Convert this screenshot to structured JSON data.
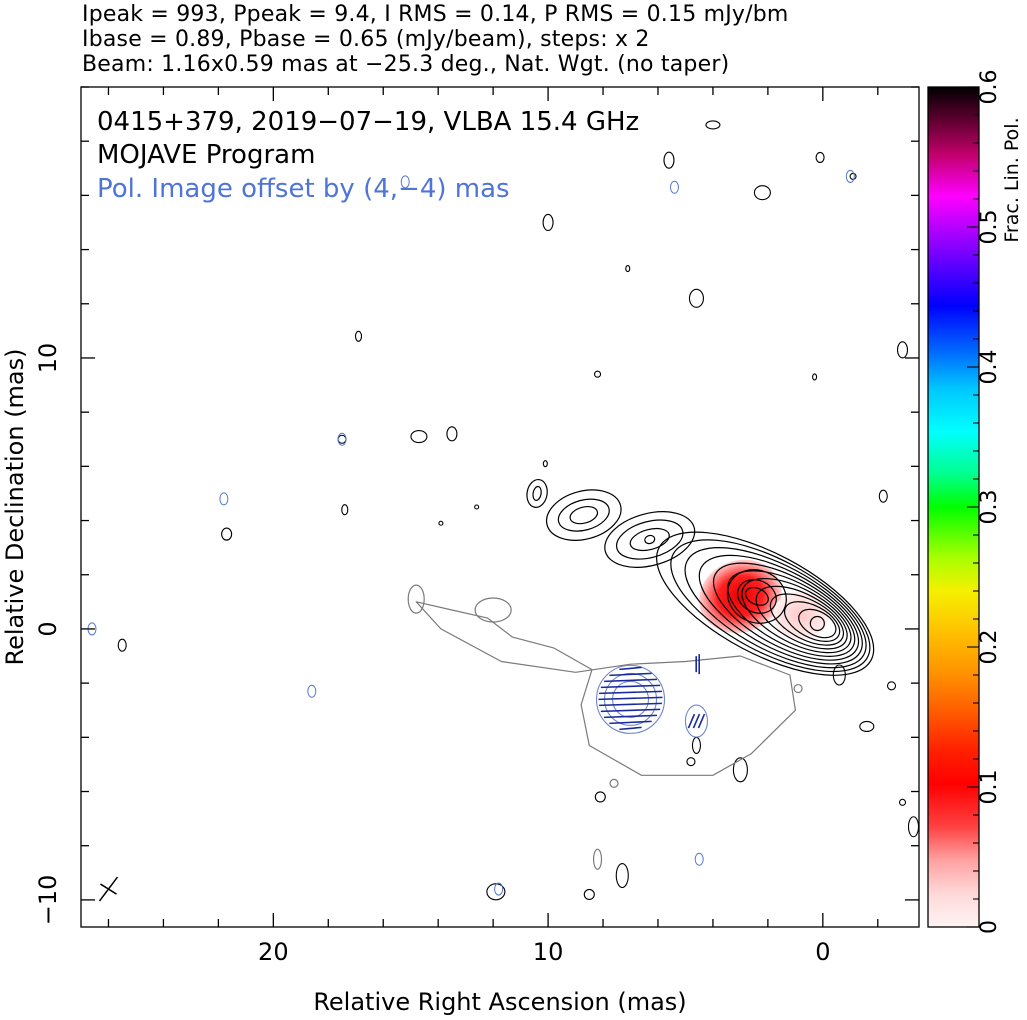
{
  "header": {
    "line1": "Ipeak = 993, Ppeak = 9.4, I RMS = 0.14, P RMS = 0.15 mJy/bm",
    "line2": "Ibase = 0.89, Pbase = 0.65 (mJy/beam), steps: x 2",
    "line3": "Beam: 1.16x0.59 mas at −25.3 deg., Nat. Wgt. (no taper)"
  },
  "chart_data": {
    "type": "contour",
    "source": "0415+379",
    "date": "2019−07−19",
    "instrument": "VLBA 15.4 GHz",
    "annotations": [
      "0415+379, 2019−07−19, VLBA 15.4 GHz",
      "MOJAVE Program",
      "Pol. Image offset by (4,−4) mas"
    ],
    "xlabel": "Relative Right Ascension (mas)",
    "ylabel": "Relative Declination (mas)",
    "xlim": [
      27,
      -3.5
    ],
    "ylim": [
      -11,
      20
    ],
    "x_ticks": [
      {
        "v": 20,
        "label": "20"
      },
      {
        "v": 10,
        "label": "10"
      },
      {
        "v": 0,
        "label": "0"
      }
    ],
    "y_ticks": [
      {
        "v": 10,
        "label": "10"
      },
      {
        "v": 0,
        "label": "0"
      },
      {
        "v": -10,
        "label": "−10"
      }
    ],
    "x_minor_step": 2,
    "y_minor_step": 2,
    "colorbar": {
      "label": "Frac. Lin. Pol.",
      "range": [
        0,
        0.6
      ],
      "ticks": [
        {
          "v": 0,
          "label": "0"
        },
        {
          "v": 0.1,
          "label": "0.1"
        },
        {
          "v": 0.2,
          "label": "0.2"
        },
        {
          "v": 0.3,
          "label": "0.3"
        },
        {
          "v": 0.4,
          "label": "0.4"
        },
        {
          "v": 0.5,
          "label": "0.5"
        },
        {
          "v": 0.6,
          "label": "0.6"
        }
      ]
    },
    "stokes_I_contours": {
      "core": {
        "x": 0.2,
        "y": 0.2,
        "levels": 11
      },
      "secondary_peak": {
        "x": 2.4,
        "y": 1.2
      },
      "jet_knots": [
        {
          "x": 6.3,
          "y": 3.3
        },
        {
          "x": 8.7,
          "y": 4.2
        },
        {
          "x": 10.4,
          "y": 5.0
        }
      ]
    },
    "frac_pol_peak": {
      "x": 3.0,
      "y": 1.2,
      "value": 0.1
    },
    "pol_offset_mas": [
      4,
      -4
    ],
    "pol_components": [
      {
        "x": 7.0,
        "y": -2.6
      },
      {
        "x": 4.6,
        "y": -3.4
      },
      {
        "x": 4.5,
        "y": -1.3
      }
    ],
    "colors": {
      "stokes_I": "#000000",
      "pol_contour": "#7a7a7a",
      "pol_ticks": "#1a2a9a",
      "pol_text": "#4f74d8"
    }
  }
}
